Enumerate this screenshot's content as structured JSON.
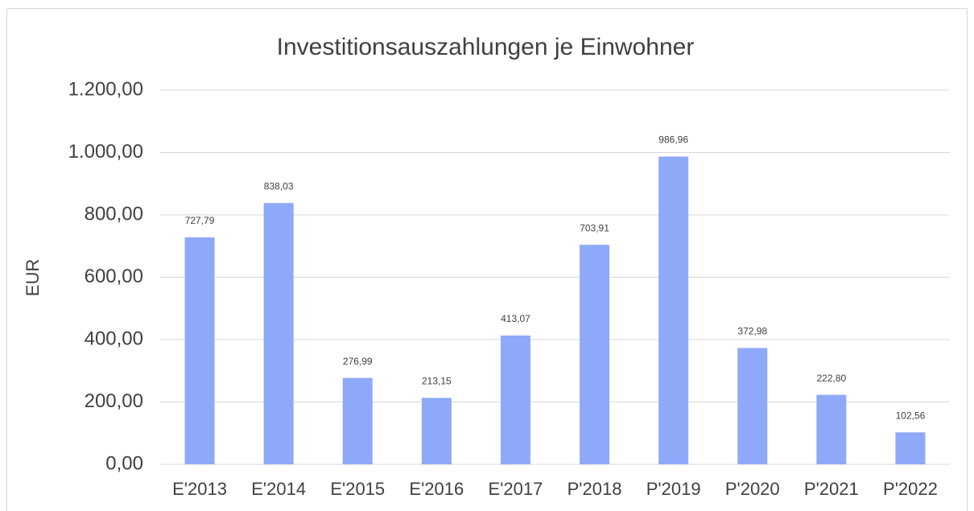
{
  "chart_data": {
    "type": "bar",
    "title": "Investitionsauszahlungen je Einwohner",
    "y_label": "EUR",
    "categories": [
      "E'2013",
      "E'2014",
      "E'2015",
      "E'2016",
      "E'2017",
      "P'2018",
      "P'2019",
      "P'2020",
      "P'2021",
      "P'2022"
    ],
    "values": [
      727.79,
      838.03,
      276.99,
      213.15,
      413.07,
      703.91,
      986.96,
      372.98,
      222.8,
      102.56
    ],
    "value_labels": [
      "727,79",
      "838,03",
      "276,99",
      "213,15",
      "413,07",
      "703,91",
      "986,96",
      "372,98",
      "222,80",
      "102,56"
    ],
    "color": "#8ea9f7",
    "ylim": [
      0,
      1200
    ],
    "yticks": [
      {
        "value": 0,
        "label": "0,00"
      },
      {
        "value": 200,
        "label": "200,00"
      },
      {
        "value": 400,
        "label": "400,00"
      },
      {
        "value": 600,
        "label": "600,00"
      },
      {
        "value": 800,
        "label": "800,00"
      },
      {
        "value": 1000,
        "label": "1.000,00"
      },
      {
        "value": 1200,
        "label": "1.200,00"
      }
    ],
    "grid": true
  }
}
